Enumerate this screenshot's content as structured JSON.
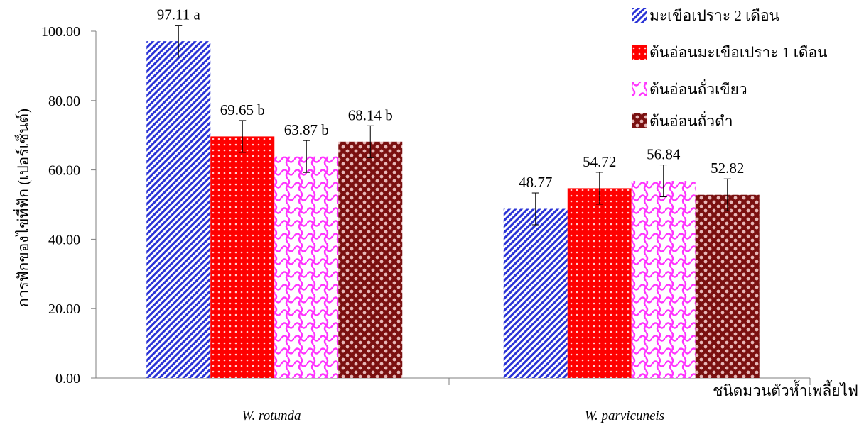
{
  "chart_data": {
    "type": "bar",
    "categories": [
      "W. rotunda",
      "W. parvicuneis"
    ],
    "series": [
      {
        "name": "มะเขือเปราะ 2 เดือน",
        "values": [
          97.11,
          48.77
        ],
        "labels": [
          "97.11 a",
          "48.77"
        ],
        "color": "#2a33d6",
        "pattern": "diagonal"
      },
      {
        "name": "ต้นอ่อนมะเขือเปราะ 1 เดือน",
        "values": [
          69.65,
          54.72
        ],
        "labels": [
          "69.65 b",
          "54.72"
        ],
        "color": "#ff0000",
        "pattern": "dots"
      },
      {
        "name": "ต้นอ่อนถั่วเขียว",
        "values": [
          63.87,
          56.84
        ],
        "labels": [
          "63.87 b",
          "56.84"
        ],
        "color": "#ff33ff",
        "pattern": "weave"
      },
      {
        "name": "ต้นอ่อนถั่วดำ",
        "values": [
          68.14,
          52.82
        ],
        "labels": [
          "68.14 b",
          "52.82"
        ],
        "color": "#8b1a1a",
        "pattern": "checker"
      }
    ],
    "error_bars": [
      4.6,
      4.6
    ],
    "ylabel": "การฟักของไข่ที่ฟัก (เปอร์เซ็นต์)",
    "xlabel": "ชนิดมวนตัวห้ำเพลี้ยไฟ",
    "ylim": [
      0,
      100
    ],
    "yticks": [
      "0.00",
      "20.00",
      "40.00",
      "60.00",
      "80.00",
      "100.00"
    ],
    "legend_position": "top-right",
    "grid": false
  }
}
